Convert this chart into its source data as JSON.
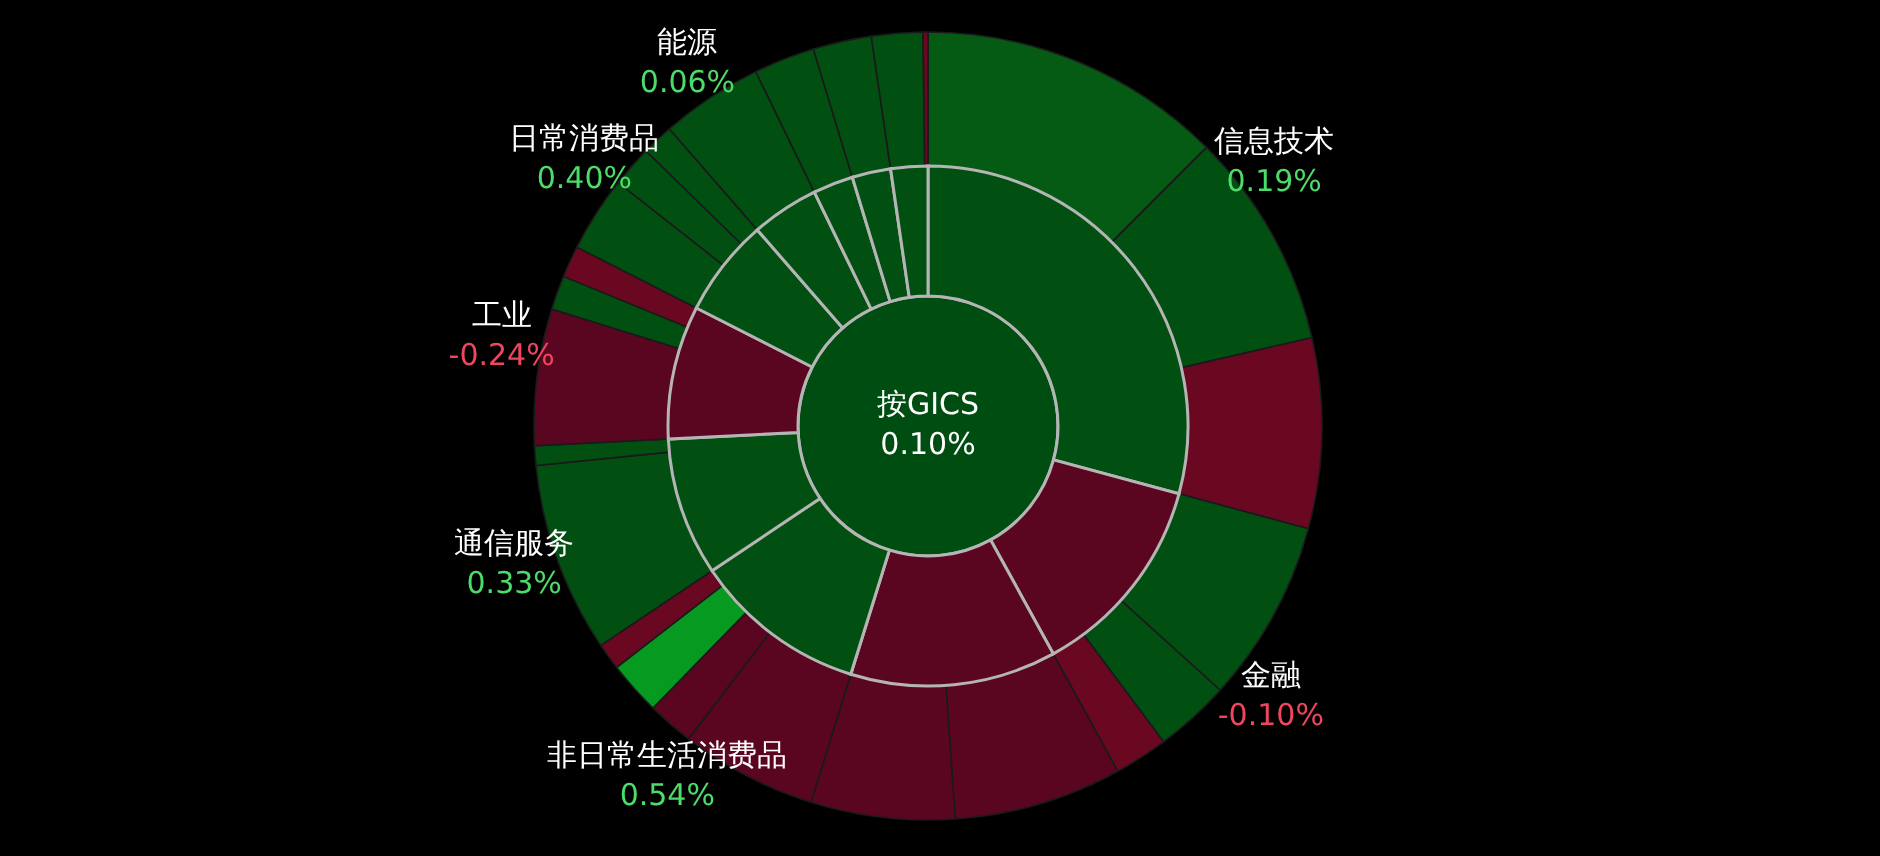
{
  "chart_data": [
    {
      "type": "donut",
      "title": "按GICS",
      "subtitle": "0.10%",
      "categories": [
        "信息技术\n0.19%",
        "金融\n-0.10%",
        null,
        "非日常生活消费品\n0.54%",
        "通信服务\n0.33%",
        "工业\n-0.24%",
        "日常消费品\n0.40%",
        "能源\n0.06%",
        null,
        null,
        null
      ],
      "values": [
        29.2,
        12.8,
        12.8,
        10.8,
        8.6,
        8.3,
        6.1,
        4.2,
        2.5,
        2.4,
        2.3
      ],
      "colors": [
        "#024f12",
        "#5a0620",
        "#5a0620",
        "#024f12",
        "#024f12",
        "#5a0620",
        "#024f12",
        "#024f12",
        "#024f12",
        "#024f12",
        "#024f12"
      ]
    },
    {
      "type": "donut",
      "categories": [
        null,
        null,
        null,
        null,
        null,
        null,
        null,
        null,
        null,
        null,
        null,
        null,
        null,
        null,
        null,
        null,
        null,
        null,
        null,
        null,
        null,
        null,
        null,
        null,
        null
      ],
      "values": [
        12.5,
        8.9,
        7.8,
        7.5,
        3.1,
        2.2,
        6.9,
        5.9,
        5.6,
        1.9,
        2.2,
        1.1,
        7.8,
        0.8,
        5.6,
        1.4,
        1.3,
        3.1,
        1.7,
        1.3,
        4.2,
        2.5,
        2.4,
        2.1,
        0.2
      ],
      "colors": [
        "#055a14",
        "#024f12",
        "#6a0822",
        "#024f12",
        "#024f12",
        "#6a0822",
        "#5a0620",
        "#5a0620",
        "#5a0620",
        "#5a0620",
        "#069a20",
        "#6a0822",
        "#024f12",
        "#024f12",
        "#5a0620",
        "#024f12",
        "#6a0822",
        "#024f12",
        "#024f12",
        "#024f12",
        "#024f12",
        "#024f12",
        "#024f12",
        "#024f12",
        "#6a0822"
      ]
    }
  ]
}
